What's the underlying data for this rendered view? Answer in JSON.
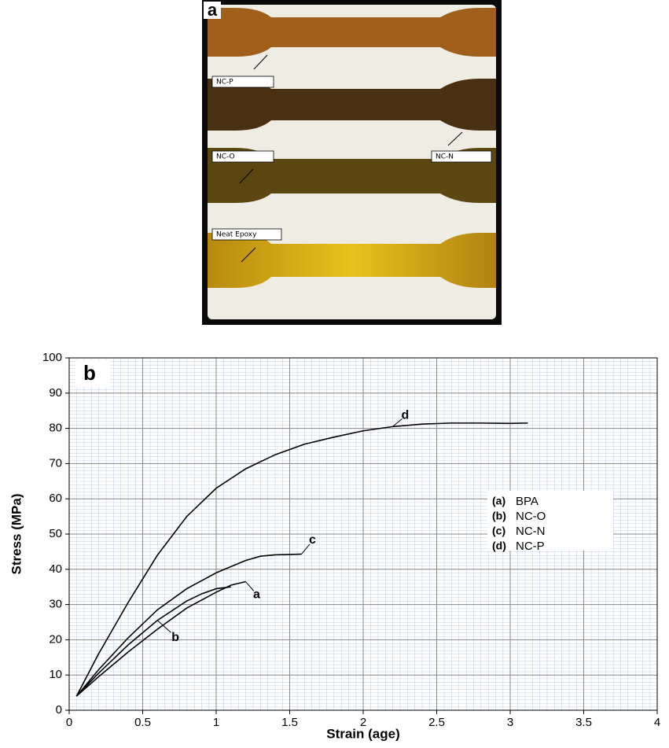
{
  "figure_a": {
    "panel_label": "a",
    "labels": [
      "NC-P",
      "NC-O",
      "NC-N",
      "Neat Epoxy"
    ]
  },
  "chart_data": {
    "type": "line",
    "panel_label": "b",
    "x_label": "Strain (age)",
    "y_label": "Stress (MPa)",
    "xlim": [
      0,
      4
    ],
    "ylim": [
      0,
      100
    ],
    "xticks": [
      0,
      0.5,
      1,
      1.5,
      2,
      2.5,
      3,
      3.5,
      4
    ],
    "yticks": [
      0,
      10,
      20,
      30,
      40,
      50,
      60,
      70,
      80,
      90,
      100
    ],
    "grid": true,
    "series": [
      {
        "name": "BPA",
        "key": "(a)",
        "label": "a",
        "color": "#000000",
        "x": [
          0.05,
          0.2,
          0.4,
          0.6,
          0.8,
          1.0,
          1.1,
          1.2
        ],
        "values": [
          4,
          9.5,
          16.5,
          23,
          29,
          33.5,
          35.5,
          36.5
        ]
      },
      {
        "name": "NC-O",
        "key": "(b)",
        "label": "b",
        "color": "#000000",
        "x": [
          0.05,
          0.2,
          0.4,
          0.6,
          0.8,
          0.9,
          1.0,
          1.1
        ],
        "values": [
          4,
          10.5,
          18.5,
          25.5,
          31,
          33,
          34.5,
          35
        ]
      },
      {
        "name": "NC-N",
        "key": "(c)",
        "label": "c",
        "color": "#000000",
        "x": [
          0.05,
          0.2,
          0.4,
          0.6,
          0.8,
          1.0,
          1.2,
          1.3,
          1.4,
          1.5,
          1.58
        ],
        "values": [
          4,
          11.5,
          20.5,
          28.5,
          34.5,
          39,
          42.5,
          43.7,
          44.1,
          44.2,
          44.3
        ]
      },
      {
        "name": "NC-P",
        "key": "(d)",
        "label": "d",
        "color": "#000000",
        "x": [
          0.05,
          0.2,
          0.4,
          0.6,
          0.8,
          1.0,
          1.2,
          1.4,
          1.6,
          1.8,
          2.0,
          2.2,
          2.4,
          2.6,
          2.8,
          3.0,
          3.12
        ],
        "values": [
          4,
          16,
          30.5,
          44,
          55,
          63,
          68.5,
          72.5,
          75.5,
          77.5,
          79.3,
          80.5,
          81.2,
          81.5,
          81.5,
          81.4,
          81.5
        ]
      }
    ]
  }
}
